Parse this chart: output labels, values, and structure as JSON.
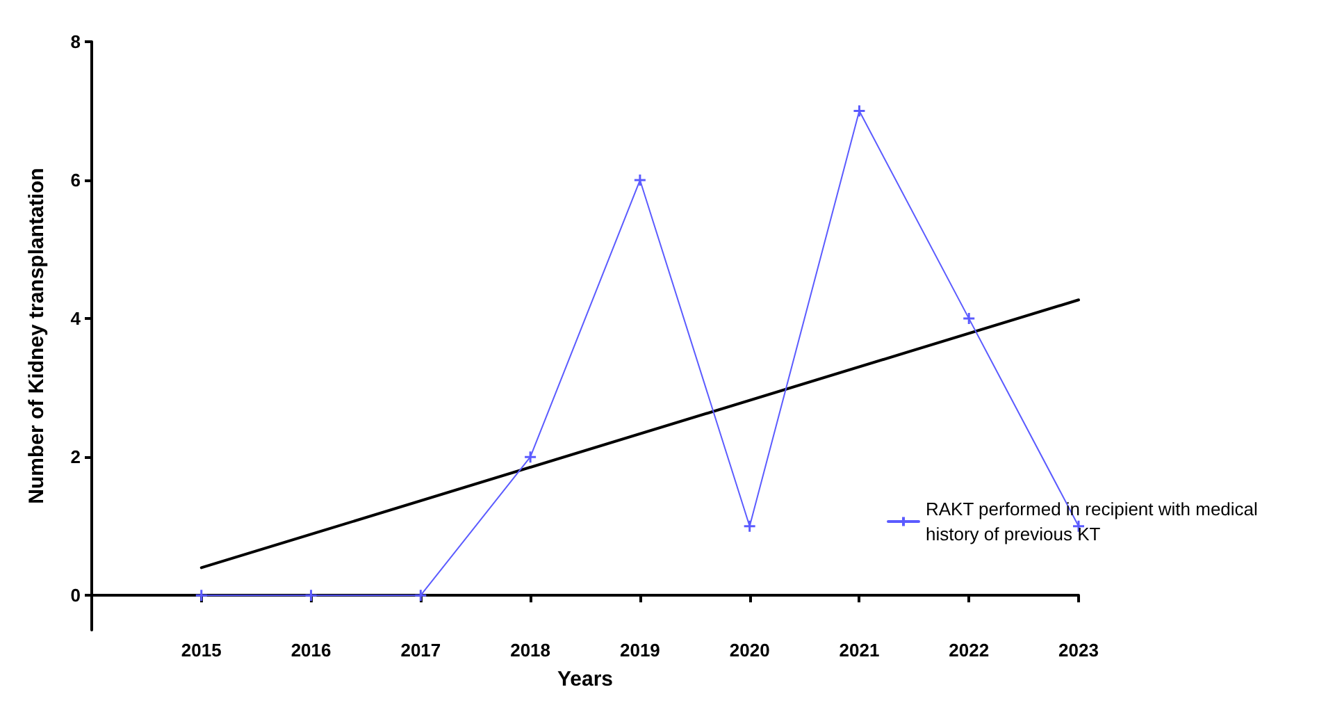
{
  "chart_data": {
    "type": "line",
    "xlabel": "Years",
    "ylabel": "Number of Kidney transplantation",
    "x": [
      2015,
      2016,
      2017,
      2018,
      2019,
      2020,
      2021,
      2022,
      2023
    ],
    "series": [
      {
        "name": "RAKT performed in recipient with medical history of previous KT",
        "color": "#5b5bff",
        "values": [
          0,
          0,
          0,
          2,
          6,
          1,
          7,
          4,
          1
        ],
        "marker": "cross"
      },
      {
        "type": "line",
        "color": "#000000",
        "x": [
          2015,
          2023
        ],
        "values": [
          0.4,
          4.27
        ],
        "marker": "none"
      }
    ],
    "xlim": [
      2014,
      2023
    ],
    "xticks": [
      2015,
      2016,
      2017,
      2018,
      2019,
      2020,
      2021,
      2022,
      2023
    ],
    "ylim": [
      -0.5,
      8
    ],
    "yticks": [
      0,
      2,
      4,
      6,
      8
    ],
    "grid": false,
    "legend": "bottom right",
    "line_style": "solid"
  }
}
